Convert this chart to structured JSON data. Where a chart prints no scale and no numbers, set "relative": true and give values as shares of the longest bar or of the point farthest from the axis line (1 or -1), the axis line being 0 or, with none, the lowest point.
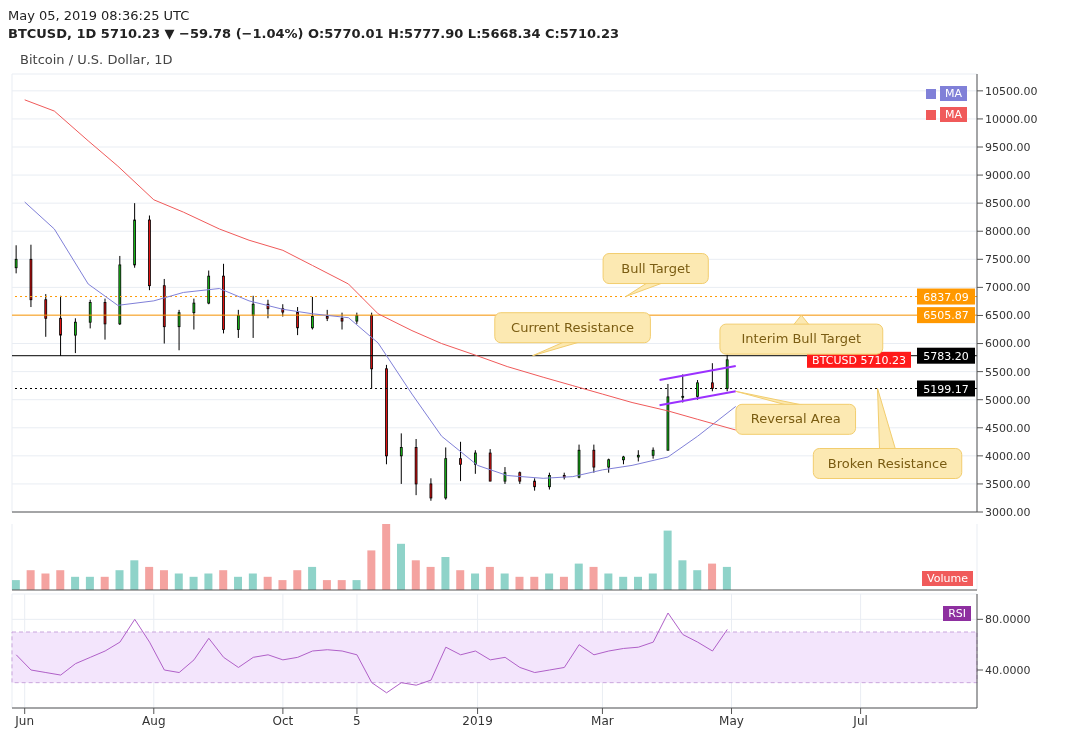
{
  "chart_data": [
    {
      "type": "candlestick",
      "title": "Bitcoin / U.S. Dollar, 1D",
      "subtitle": "May 05, 2019 08:36:25 UTC",
      "annotations": [
        "BTCUSD, 1D 5710.23 ▼ −59.78 (−1.04%) O:5770.01 H:5777.90 L:5668.34 C:5710.23",
        {
          "text": "Current Resistance",
          "x": "2019-01-27",
          "y": 5783.2
        },
        {
          "text": "Bull Target",
          "x": "2019-03-12",
          "y": 6837.09
        },
        {
          "text": "Interim Bull Target",
          "x": "2019-06-03",
          "y": 6505.87
        },
        {
          "text": "Reversal Area",
          "x": "2019-05-03",
          "y": 5149
        },
        {
          "text": "Broken Resistance",
          "x": "2019-07-09",
          "y": 5199.17
        },
        {
          "text": "BTCUSD 5710.23",
          "y": 5710.23
        }
      ],
      "x": [
        "2018-05-28",
        "2018-06-04",
        "2018-06-11",
        "2018-06-18",
        "2018-06-25",
        "2018-07-02",
        "2018-07-09",
        "2018-07-16",
        "2018-07-23",
        "2018-07-30",
        "2018-08-06",
        "2018-08-13",
        "2018-08-20",
        "2018-08-27",
        "2018-09-03",
        "2018-09-10",
        "2018-09-17",
        "2018-09-24",
        "2018-10-01",
        "2018-10-08",
        "2018-10-15",
        "2018-10-22",
        "2018-10-29",
        "2018-11-05",
        "2018-11-12",
        "2018-11-19",
        "2018-11-26",
        "2018-12-03",
        "2018-12-10",
        "2018-12-17",
        "2018-12-24",
        "2018-12-31",
        "2019-01-07",
        "2019-01-14",
        "2019-01-21",
        "2019-01-28",
        "2019-02-04",
        "2019-02-11",
        "2019-02-18",
        "2019-02-25",
        "2019-03-04",
        "2019-03-11",
        "2019-03-18",
        "2019-03-25",
        "2019-04-01",
        "2019-04-08",
        "2019-04-15",
        "2019-04-22",
        "2019-04-29"
      ],
      "ohlc": [
        [
          7350,
          7750,
          7250,
          7500
        ],
        [
          7500,
          7760,
          6650,
          6780
        ],
        [
          6780,
          6880,
          6120,
          6450
        ],
        [
          6450,
          6850,
          5780,
          6150
        ],
        [
          6150,
          6450,
          5830,
          6380
        ],
        [
          6380,
          6780,
          6270,
          6730
        ],
        [
          6730,
          6800,
          6070,
          6350
        ],
        [
          6350,
          7560,
          6330,
          7400
        ],
        [
          7400,
          8500,
          7350,
          8200
        ],
        [
          8200,
          8280,
          6950,
          7030
        ],
        [
          7030,
          7150,
          6000,
          6300
        ],
        [
          6300,
          6600,
          5880,
          6550
        ],
        [
          6550,
          6800,
          6250,
          6720
        ],
        [
          6720,
          7300,
          6700,
          7200
        ],
        [
          7200,
          7420,
          6180,
          6250
        ],
        [
          6250,
          6600,
          6100,
          6500
        ],
        [
          6500,
          6850,
          6100,
          6700
        ],
        [
          6700,
          6780,
          6450,
          6620
        ],
        [
          6620,
          6700,
          6480,
          6560
        ],
        [
          6560,
          6650,
          6150,
          6280
        ],
        [
          6280,
          6830,
          6250,
          6480
        ],
        [
          6480,
          6600,
          6400,
          6450
        ],
        [
          6450,
          6550,
          6250,
          6400
        ],
        [
          6400,
          6550,
          6350,
          6500
        ],
        [
          6500,
          6550,
          5200,
          5550
        ],
        [
          5550,
          5620,
          3850,
          4000
        ],
        [
          4000,
          4400,
          3500,
          4150
        ],
        [
          4150,
          4300,
          3300,
          3500
        ],
        [
          3500,
          3600,
          3200,
          3250
        ],
        [
          3250,
          4150,
          3220,
          3950
        ],
        [
          3950,
          4250,
          3550,
          3850
        ],
        [
          3850,
          4100,
          3680,
          4050
        ],
        [
          4050,
          4120,
          3550,
          3550
        ],
        [
          3550,
          3800,
          3500,
          3700
        ],
        [
          3700,
          3720,
          3500,
          3550
        ],
        [
          3550,
          3600,
          3380,
          3450
        ],
        [
          3450,
          3700,
          3400,
          3650
        ],
        [
          3650,
          3700,
          3580,
          3620
        ],
        [
          3620,
          4200,
          3600,
          4100
        ],
        [
          4100,
          4200,
          3700,
          3800
        ],
        [
          3800,
          3950,
          3700,
          3930
        ],
        [
          3930,
          4000,
          3850,
          3980
        ],
        [
          3980,
          4100,
          3900,
          4010
        ],
        [
          4010,
          4150,
          3950,
          4100
        ],
        [
          4100,
          5280,
          4100,
          5050
        ],
        [
          5050,
          5450,
          4950,
          5060
        ],
        [
          5060,
          5350,
          5000,
          5300
        ],
        [
          5300,
          5650,
          5150,
          5200
        ],
        [
          5200,
          5800,
          5150,
          5710
        ]
      ],
      "colors": [
        "#18c418",
        "#e01010",
        "#e01010",
        "#e01010",
        "#18c418",
        "#18c418",
        "#e01010",
        "#18c418",
        "#18c418",
        "#e01010",
        "#e01010",
        "#18c418",
        "#18c418",
        "#18c418",
        "#e01010",
        "#18c418",
        "#18c418",
        "#e01010",
        "#e01010",
        "#e01010",
        "#18c418",
        "#e01010",
        "#e01010",
        "#18c418",
        "#e01010",
        "#e01010",
        "#18c418",
        "#e01010",
        "#e01010",
        "#18c418",
        "#e01010",
        "#18c418",
        "#e01010",
        "#18c418",
        "#e01010",
        "#e01010",
        "#18c418",
        "#e01010",
        "#18c418",
        "#e01010",
        "#18c418",
        "#18c418",
        "#18c418",
        "#18c418",
        "#18c418",
        "#18c418",
        "#18c418",
        "#e01010",
        "#18c418"
      ],
      "series": [
        {
          "type": "line",
          "name": "MA",
          "color": "#8080d8",
          "x": [
            "2018-06-01",
            "2018-06-15",
            "2018-07-01",
            "2018-07-15",
            "2018-08-01",
            "2018-08-15",
            "2018-09-01",
            "2018-09-15",
            "2018-10-01",
            "2018-10-15",
            "2018-11-01",
            "2018-11-15",
            "2018-12-01",
            "2018-12-15",
            "2019-01-01",
            "2019-01-15",
            "2019-02-01",
            "2019-02-15",
            "2019-03-01",
            "2019-03-15",
            "2019-04-01",
            "2019-04-15",
            "2019-05-03"
          ],
          "values": [
            8520,
            8040,
            7060,
            6680,
            6760,
            6910,
            6980,
            6760,
            6610,
            6530,
            6460,
            6010,
            5100,
            4350,
            3830,
            3650,
            3600,
            3630,
            3750,
            3830,
            3980,
            4350,
            4880
          ]
        },
        {
          "type": "line",
          "name": "MA",
          "color": "#f05a5a",
          "x": [
            "2018-06-01",
            "2018-06-15",
            "2018-07-01",
            "2018-07-15",
            "2018-08-01",
            "2018-08-15",
            "2018-09-01",
            "2018-09-15",
            "2018-10-01",
            "2018-10-15",
            "2018-11-01",
            "2018-11-15",
            "2018-12-01",
            "2018-12-15",
            "2019-01-01",
            "2019-01-15",
            "2019-02-01",
            "2019-02-15",
            "2019-03-01",
            "2019-03-15",
            "2019-04-01",
            "2019-04-15",
            "2019-05-03"
          ],
          "values": [
            10340,
            10140,
            9610,
            9160,
            8560,
            8340,
            8040,
            7840,
            7660,
            7390,
            7060,
            6530,
            6230,
            6000,
            5780,
            5590,
            5400,
            5250,
            5100,
            4950,
            4800,
            4650,
            4460
          ]
        },
        {
          "type": "line",
          "color": "#9b30ff",
          "x": [
            "2019-03-28",
            "2019-05-03"
          ],
          "values": [
            5350,
            5600
          ]
        },
        {
          "type": "line",
          "color": "#9b30ff",
          "x": [
            "2019-03-28",
            "2019-05-03"
          ],
          "values": [
            4900,
            5150
          ]
        }
      ],
      "ref_lines": [
        {
          "axis": "y",
          "value": 6837.09,
          "label": "6837.09",
          "color": "#ff9800",
          "line_style": "dotted"
        },
        {
          "axis": "y",
          "value": 6505.87,
          "label": "6505.87",
          "color": "#ff9800",
          "line_style": "solid"
        },
        {
          "axis": "y",
          "value": 5783.2,
          "label": "5783.20",
          "color": "#000000",
          "line_style": "solid"
        },
        {
          "axis": "y",
          "value": 5199.17,
          "label": "5199.17",
          "color": "#000000",
          "line_style": "dotted"
        }
      ],
      "xlim": [
        "2018-05-26",
        "2019-08-25"
      ],
      "xticks": [
        {
          "value": "2018-06-01",
          "label": null
        },
        {
          "value": "2018-08-01",
          "label": null
        },
        {
          "value": "2018-10-01",
          "label": null
        },
        {
          "value": "2018-11-05",
          "label": null
        },
        {
          "value": "2019-01-01",
          "label": null
        },
        {
          "value": "2019-03-01",
          "label": null
        },
        {
          "value": "2019-05-01",
          "label": null
        },
        {
          "value": "2019-07-01",
          "label": null
        }
      ],
      "ylim": [
        3000,
        10800
      ],
      "yticks": [
        {
          "value": 3000,
          "label": "3000.00"
        },
        {
          "value": 3500,
          "label": "3500.00"
        },
        {
          "value": 4000,
          "label": "4000.00"
        },
        {
          "value": 4500,
          "label": "4500.00"
        },
        {
          "value": 5000,
          "label": "5000.00"
        },
        {
          "value": 5500,
          "label": "5500.00"
        },
        {
          "value": 6000,
          "label": "6000.00"
        },
        {
          "value": 6500,
          "label": "6500.00"
        },
        {
          "value": 7000,
          "label": "7000.00"
        },
        {
          "value": 7500,
          "label": "7500.00"
        },
        {
          "value": 8000,
          "label": "8000.00"
        },
        {
          "value": 8500,
          "label": "8500.00"
        },
        {
          "value": 9000,
          "label": "9000.00"
        },
        {
          "value": 9500,
          "label": "9500.00"
        },
        {
          "value": 10000,
          "label": "10000.00"
        },
        {
          "value": 10500,
          "label": "10500.00"
        }
      ],
      "tick_labels": "y",
      "grid": true,
      "legend": "top right"
    },
    {
      "type": "bar",
      "relative": true,
      "ylabel": "Volume",
      "x": [
        "2018-05-28",
        "2018-06-04",
        "2018-06-11",
        "2018-06-18",
        "2018-06-25",
        "2018-07-02",
        "2018-07-09",
        "2018-07-16",
        "2018-07-23",
        "2018-07-30",
        "2018-08-06",
        "2018-08-13",
        "2018-08-20",
        "2018-08-27",
        "2018-09-03",
        "2018-09-10",
        "2018-09-17",
        "2018-09-24",
        "2018-10-01",
        "2018-10-08",
        "2018-10-15",
        "2018-10-22",
        "2018-10-29",
        "2018-11-05",
        "2018-11-12",
        "2018-11-19",
        "2018-11-26",
        "2018-12-03",
        "2018-12-10",
        "2018-12-17",
        "2018-12-24",
        "2018-12-31",
        "2019-01-07",
        "2019-01-14",
        "2019-01-21",
        "2019-01-28",
        "2019-02-04",
        "2019-02-11",
        "2019-02-18",
        "2019-02-25",
        "2019-03-04",
        "2019-03-11",
        "2019-03-18",
        "2019-03-25",
        "2019-04-01",
        "2019-04-08",
        "2019-04-15",
        "2019-04-22",
        "2019-04-29"
      ],
      "values": [
        0.15,
        0.3,
        0.25,
        0.3,
        0.2,
        0.2,
        0.2,
        0.3,
        0.45,
        0.35,
        0.3,
        0.25,
        0.2,
        0.25,
        0.3,
        0.2,
        0.25,
        0.2,
        0.15,
        0.3,
        0.35,
        0.15,
        0.15,
        0.15,
        0.6,
        1,
        0.7,
        0.45,
        0.35,
        0.5,
        0.3,
        0.25,
        0.35,
        0.25,
        0.2,
        0.2,
        0.25,
        0.2,
        0.4,
        0.35,
        0.25,
        0.2,
        0.2,
        0.25,
        0.9,
        0.45,
        0.3,
        0.4,
        0.35
      ],
      "colors": [
        "#8fd3c9",
        "#f4a3a0",
        "#f4a3a0",
        "#f4a3a0",
        "#8fd3c9",
        "#8fd3c9",
        "#f4a3a0",
        "#8fd3c9",
        "#8fd3c9",
        "#f4a3a0",
        "#f4a3a0",
        "#8fd3c9",
        "#8fd3c9",
        "#8fd3c9",
        "#f4a3a0",
        "#8fd3c9",
        "#8fd3c9",
        "#f4a3a0",
        "#f4a3a0",
        "#f4a3a0",
        "#8fd3c9",
        "#f4a3a0",
        "#f4a3a0",
        "#8fd3c9",
        "#f4a3a0",
        "#f4a3a0",
        "#8fd3c9",
        "#f4a3a0",
        "#f4a3a0",
        "#8fd3c9",
        "#f4a3a0",
        "#8fd3c9",
        "#f4a3a0",
        "#8fd3c9",
        "#f4a3a0",
        "#f4a3a0",
        "#8fd3c9",
        "#f4a3a0",
        "#8fd3c9",
        "#f4a3a0",
        "#8fd3c9",
        "#8fd3c9",
        "#8fd3c9",
        "#8fd3c9",
        "#8fd3c9",
        "#8fd3c9",
        "#8fd3c9",
        "#f4a3a0",
        "#8fd3c9"
      ],
      "xlim": [
        "2018-05-26",
        "2019-08-25"
      ],
      "xticks": [
        {
          "value": "2018-06-01",
          "label": null
        },
        {
          "value": "2018-08-01",
          "label": null
        },
        {
          "value": "2018-10-01",
          "label": null
        },
        {
          "value": "2018-11-05",
          "label": null
        },
        {
          "value": "2019-01-01",
          "label": null
        },
        {
          "value": "2019-03-01",
          "label": null
        },
        {
          "value": "2019-05-01",
          "label": null
        },
        {
          "value": "2019-07-01",
          "label": null
        }
      ],
      "tick_labels": false,
      "grid": "x"
    },
    {
      "type": "line",
      "ylabel": "RSI",
      "x": [
        "2018-05-28",
        "2018-06-04",
        "2018-06-11",
        "2018-06-18",
        "2018-06-25",
        "2018-07-02",
        "2018-07-09",
        "2018-07-16",
        "2018-07-23",
        "2018-07-30",
        "2018-08-06",
        "2018-08-13",
        "2018-08-20",
        "2018-08-27",
        "2018-09-03",
        "2018-09-10",
        "2018-09-17",
        "2018-09-24",
        "2018-10-01",
        "2018-10-08",
        "2018-10-15",
        "2018-10-22",
        "2018-10-29",
        "2018-11-05",
        "2018-11-12",
        "2018-11-19",
        "2018-11-26",
        "2018-12-03",
        "2018-12-10",
        "2018-12-17",
        "2018-12-24",
        "2018-12-31",
        "2019-01-07",
        "2019-01-14",
        "2019-01-21",
        "2019-01-28",
        "2019-02-04",
        "2019-02-11",
        "2019-02-18",
        "2019-02-25",
        "2019-03-04",
        "2019-03-11",
        "2019-03-18",
        "2019-03-25",
        "2019-04-01",
        "2019-04-08",
        "2019-04-15",
        "2019-04-22",
        "2019-04-29"
      ],
      "series": [
        {
          "color": "#b060c8",
          "values": [
            52,
            40,
            38,
            36,
            45,
            50,
            55,
            62,
            80,
            62,
            40,
            38,
            48,
            65,
            50,
            42,
            50,
            52,
            48,
            50,
            55,
            56,
            55,
            52,
            30,
            22,
            30,
            28,
            32,
            58,
            52,
            55,
            48,
            50,
            42,
            38,
            40,
            42,
            60,
            52,
            55,
            57,
            58,
            62,
            85,
            68,
            62,
            55,
            72
          ]
        }
      ],
      "bands": [
        {
          "axis": "y",
          "from": 30,
          "to": 70,
          "color": "#f3e5fc"
        }
      ],
      "xlim": [
        "2018-05-26",
        "2019-08-25"
      ],
      "xticks": [
        {
          "value": "2018-06-01",
          "label": "Jun"
        },
        {
          "value": "2018-08-01",
          "label": "Aug"
        },
        {
          "value": "2018-10-01",
          "label": "Oct"
        },
        {
          "value": "2018-11-05",
          "label": "5"
        },
        {
          "value": "2019-01-01",
          "label": "2019"
        },
        {
          "value": "2019-03-01",
          "label": "Mar"
        },
        {
          "value": "2019-05-01",
          "label": "May"
        },
        {
          "value": "2019-07-01",
          "label": "Jul"
        }
      ],
      "ylim": [
        10,
        100
      ],
      "yticks": [
        {
          "value": 80,
          "label": "80.0000"
        },
        {
          "value": 40,
          "label": "40.0000"
        }
      ],
      "grid": true
    }
  ]
}
